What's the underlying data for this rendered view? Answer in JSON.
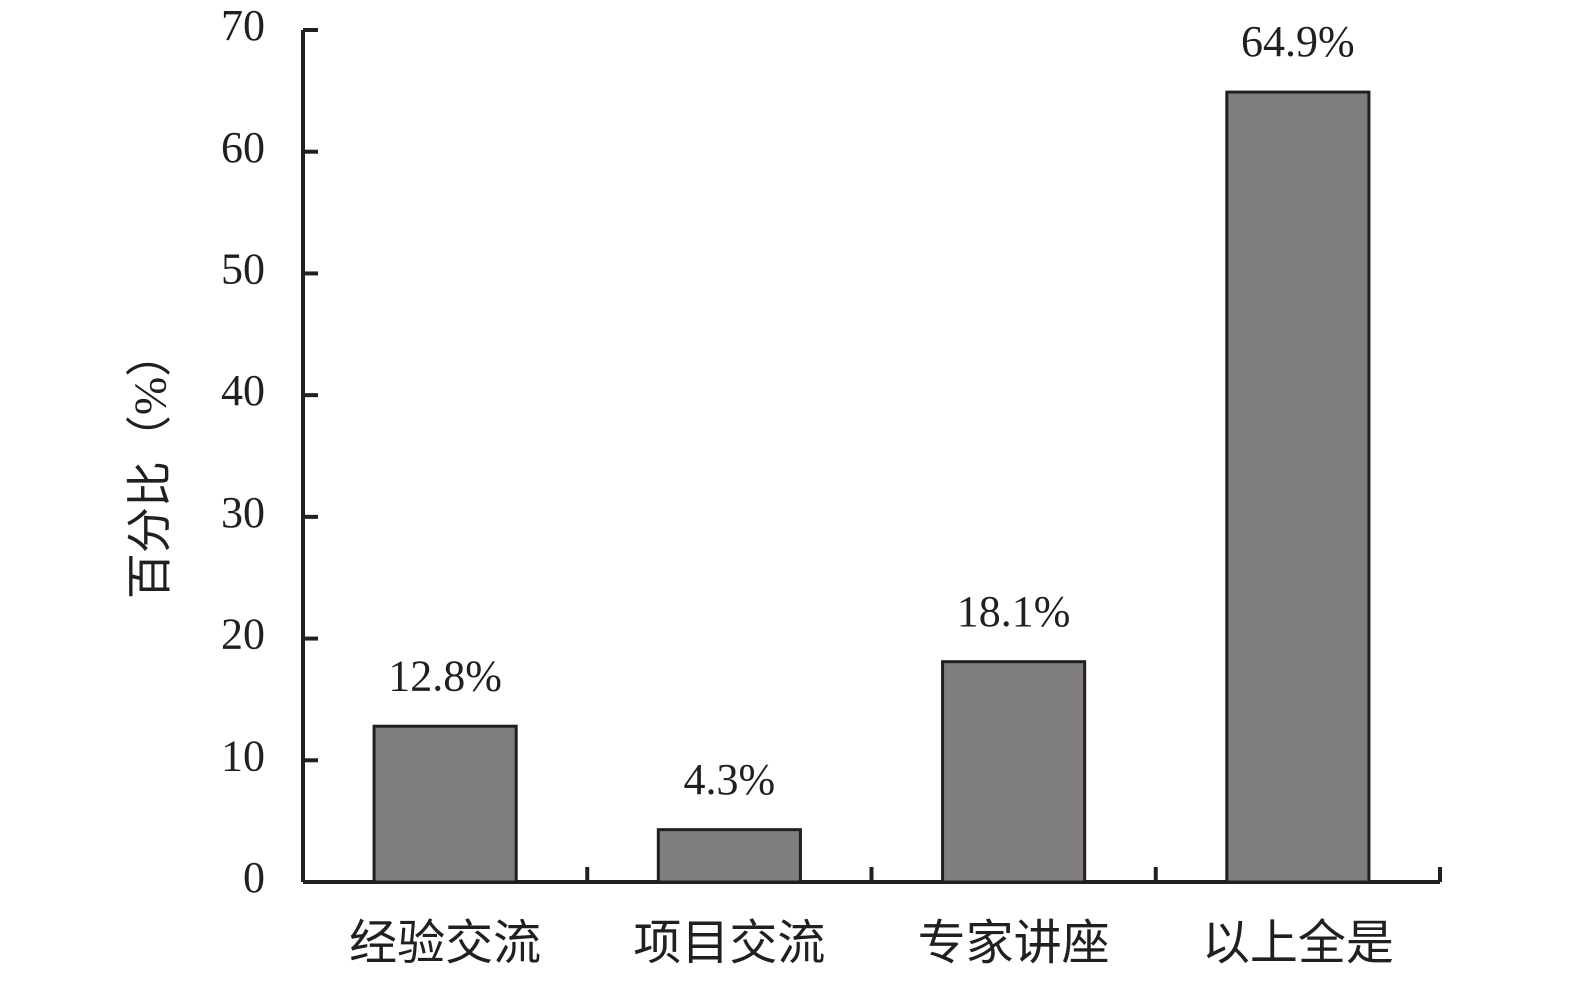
{
  "chart_data": {
    "type": "bar",
    "y_label": "百分比（%）",
    "categories": [
      "经验交流",
      "项目交流",
      "专家讲座",
      "以上全是"
    ],
    "values": [
      12.8,
      4.3,
      18.1,
      64.9
    ],
    "value_labels": [
      "12.8%",
      "4.3%",
      "18.1%",
      "64.9%"
    ],
    "color": "#7f7d7e",
    "ylim": [
      0,
      70
    ],
    "yticks": [
      0,
      10,
      20,
      30,
      40,
      50,
      60,
      70
    ],
    "grid": false
  }
}
